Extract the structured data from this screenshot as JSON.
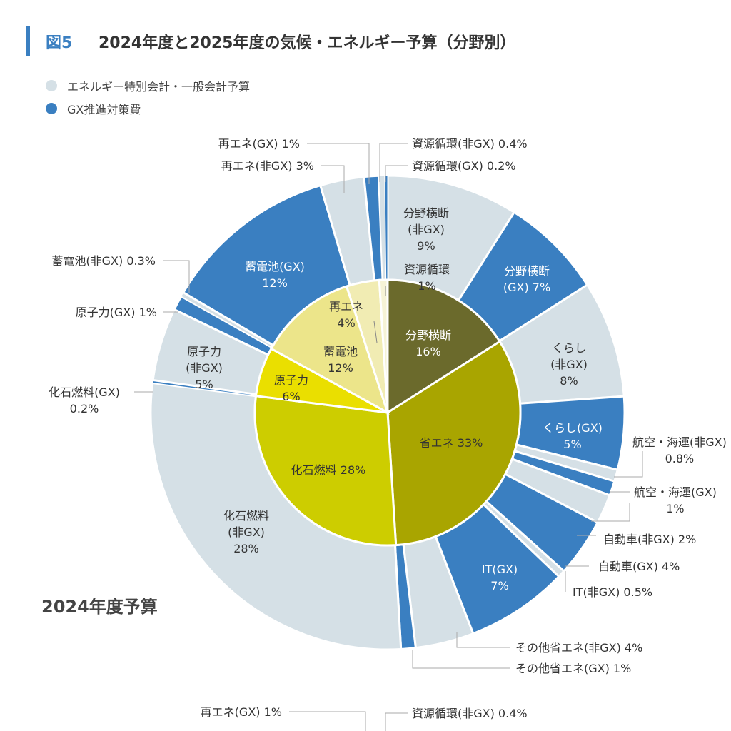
{
  "figure_number": "図5",
  "title": "2024年度と2025年度の気候・エネルギー予算（分野別）",
  "legend": [
    {
      "label": "エネルギー特別会計・一般会計予算",
      "color": "#d5e0e6"
    },
    {
      "label": "GX推進対策費",
      "color": "#3a7fc1"
    }
  ],
  "subtitle": "2024年度予算",
  "chart_data": [
    {
      "type": "pie",
      "title": "2024年度予算",
      "unit": "%",
      "inner": [
        {
          "name": "分野横断",
          "value": 16,
          "color": "#6b6a2c"
        },
        {
          "name": "省エネ",
          "value": 33,
          "color": "#a9a500"
        },
        {
          "name": "化石燃料",
          "value": 28,
          "color": "#cdcd00"
        },
        {
          "name": "原子力",
          "value": 6,
          "color": "#eadf00"
        },
        {
          "name": "蓄電池",
          "value": 12,
          "color": "#ece58a"
        },
        {
          "name": "再エネ",
          "value": 4,
          "color": "#f1ecb3"
        },
        {
          "name": "資源循環",
          "value": 1,
          "color": "#f6f3d6"
        }
      ],
      "outer": [
        {
          "name": "分野横断(非GX)",
          "value": 9,
          "gx": false
        },
        {
          "name": "分野横断(GX)",
          "value": 7,
          "gx": true
        },
        {
          "name": "くらし(非GX)",
          "value": 8,
          "gx": false
        },
        {
          "name": "くらし(GX)",
          "value": 5,
          "gx": true
        },
        {
          "name": "航空・海運(非GX)",
          "value": 0.8,
          "gx": false
        },
        {
          "name": "航空・海運(GX)",
          "value": 1,
          "gx": true
        },
        {
          "name": "自動車(非GX)",
          "value": 2,
          "gx": false
        },
        {
          "name": "自動車(GX)",
          "value": 4,
          "gx": true
        },
        {
          "name": "IT(非GX)",
          "value": 0.5,
          "gx": false
        },
        {
          "name": "IT(GX)",
          "value": 7,
          "gx": true
        },
        {
          "name": "その他省エネ(非GX)",
          "value": 4,
          "gx": false
        },
        {
          "name": "その他省エネ(GX)",
          "value": 1,
          "gx": true
        },
        {
          "name": "化石燃料(非GX)",
          "value": 28,
          "gx": false
        },
        {
          "name": "化石燃料(GX)",
          "value": 0.2,
          "gx": true
        },
        {
          "name": "原子力(非GX)",
          "value": 5,
          "gx": false
        },
        {
          "name": "原子力(GX)",
          "value": 1,
          "gx": true
        },
        {
          "name": "蓄電池(非GX)",
          "value": 0.3,
          "gx": false
        },
        {
          "name": "蓄電池(GX)",
          "value": 12,
          "gx": true
        },
        {
          "name": "再エネ(非GX)",
          "value": 3,
          "gx": false
        },
        {
          "name": "再エネ(GX)",
          "value": 1,
          "gx": true
        },
        {
          "name": "資源循環(非GX)",
          "value": 0.4,
          "gx": false
        },
        {
          "name": "資源循環(GX)",
          "value": 0.2,
          "gx": true
        }
      ],
      "colors": {
        "non_gx": "#d5e0e6",
        "gx": "#3a7fc1"
      }
    },
    {
      "type": "pie",
      "partial": true,
      "visible_labels": [
        {
          "name": "再エネ(GX)",
          "value": 1
        },
        {
          "name": "資源循環(非GX)",
          "value": 0.4
        }
      ]
    }
  ]
}
